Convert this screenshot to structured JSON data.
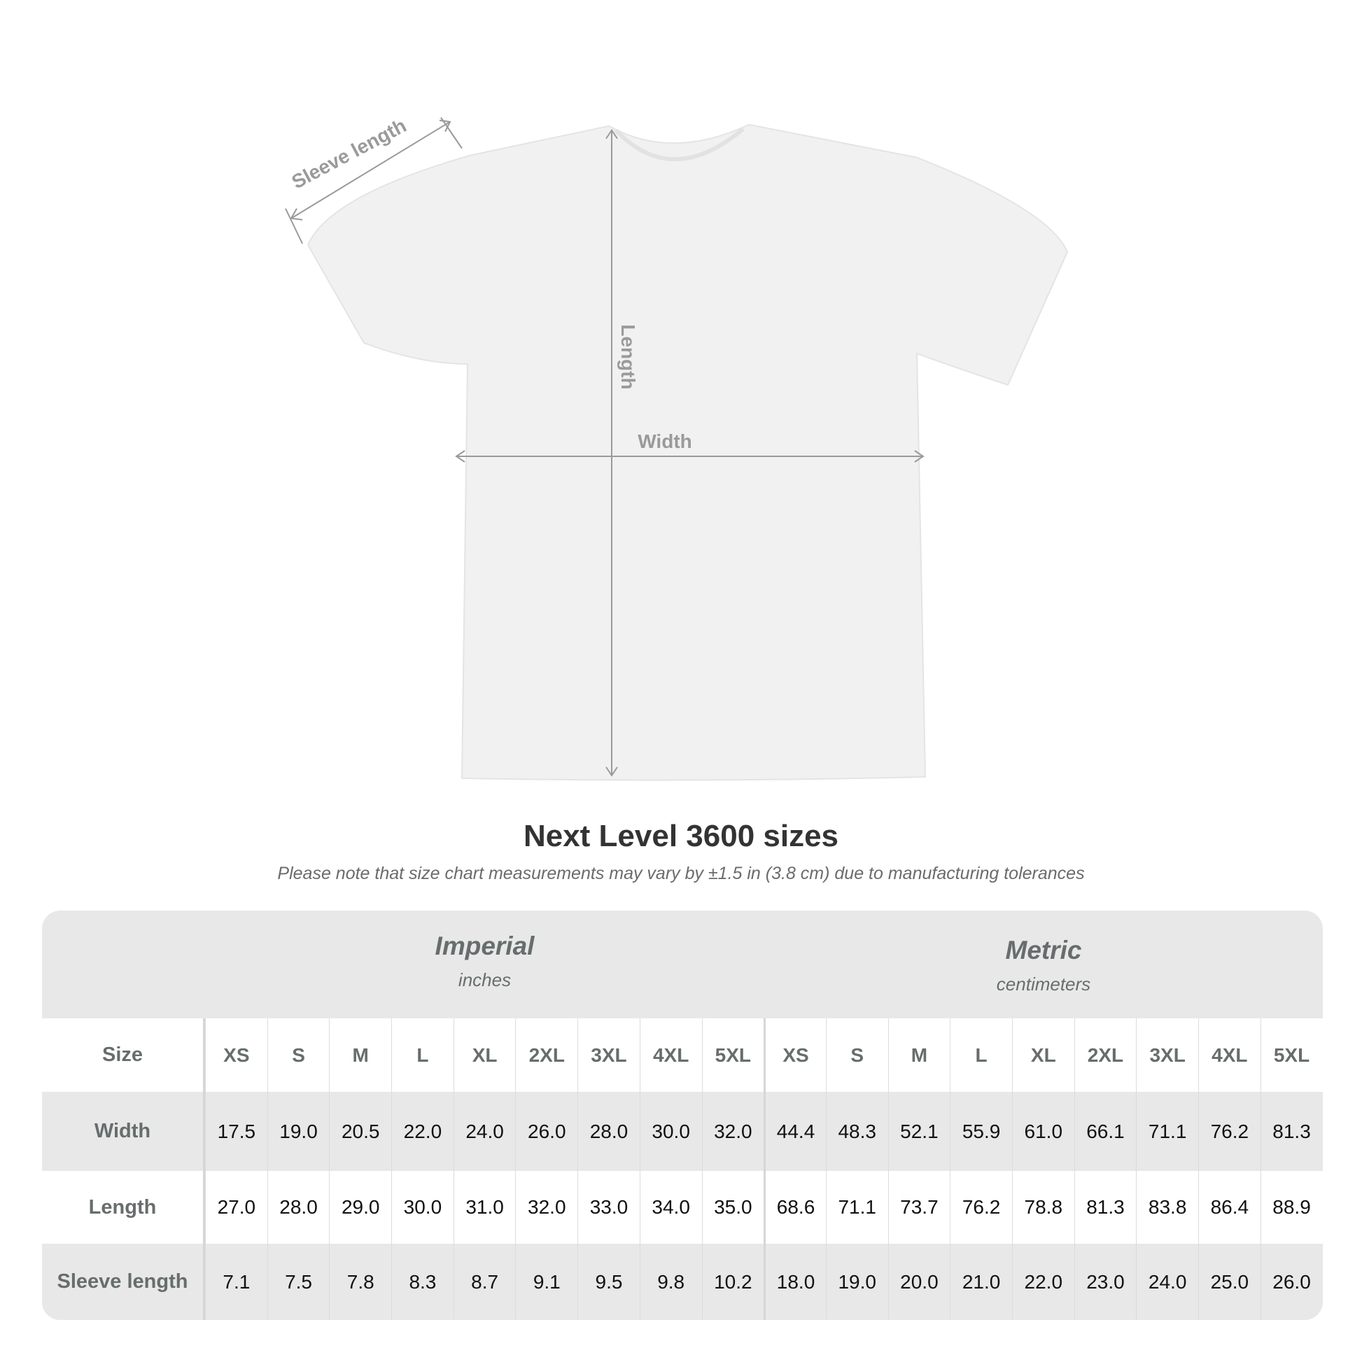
{
  "diagram": {
    "sleeve_label": "Sleeve length",
    "length_label": "Length",
    "width_label": "Width",
    "garment_color": "#f1f1f1",
    "arrow_color": "#9a9a9a"
  },
  "title": "Next Level 3600 sizes",
  "note": "Please note that size chart measurements may vary by ±1.5 in (3.8 cm) due to manufacturing tolerances",
  "table": {
    "imperial": {
      "label": "Imperial",
      "unit": "inches"
    },
    "metric": {
      "label": "Metric",
      "unit": "centimeters"
    },
    "size_label": "Size",
    "sizes": [
      "XS",
      "S",
      "M",
      "L",
      "XL",
      "2XL",
      "3XL",
      "4XL",
      "5XL"
    ],
    "rows": [
      {
        "label": "Width",
        "imperial": [
          "17.5",
          "19.0",
          "20.5",
          "22.0",
          "24.0",
          "26.0",
          "28.0",
          "30.0",
          "32.0"
        ],
        "metric": [
          "44.4",
          "48.3",
          "52.1",
          "55.9",
          "61.0",
          "66.1",
          "71.1",
          "76.2",
          "81.3"
        ]
      },
      {
        "label": "Length",
        "imperial": [
          "27.0",
          "28.0",
          "29.0",
          "30.0",
          "31.0",
          "32.0",
          "33.0",
          "34.0",
          "35.0"
        ],
        "metric": [
          "68.6",
          "71.1",
          "73.7",
          "76.2",
          "78.8",
          "81.3",
          "83.8",
          "86.4",
          "88.9"
        ]
      },
      {
        "label": "Sleeve length",
        "imperial": [
          "7.1",
          "7.5",
          "7.8",
          "8.3",
          "8.7",
          "9.1",
          "9.5",
          "9.8",
          "10.2"
        ],
        "metric": [
          "18.0",
          "19.0",
          "20.0",
          "21.0",
          "22.0",
          "23.0",
          "24.0",
          "25.0",
          "26.0"
        ]
      }
    ]
  }
}
